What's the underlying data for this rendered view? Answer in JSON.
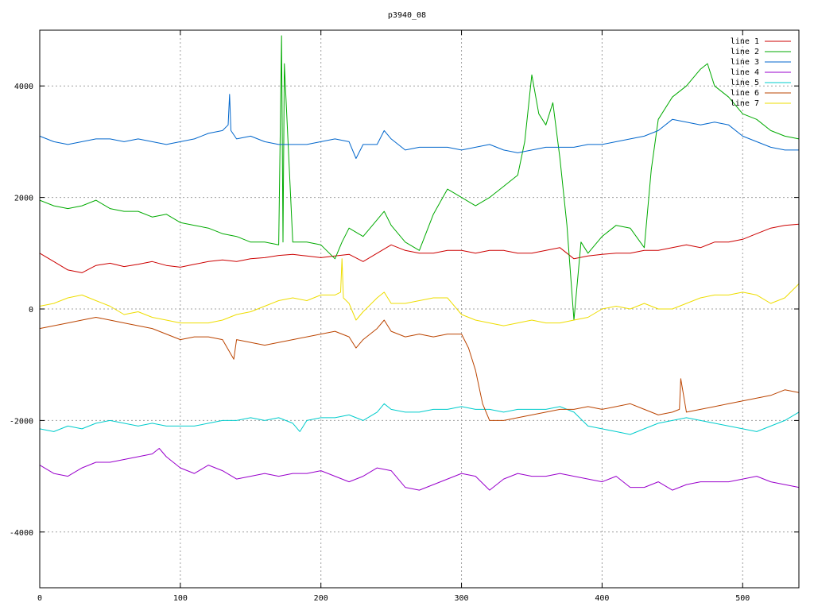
{
  "chart_data": {
    "type": "line",
    "title": "p3940_08",
    "xlabel": "",
    "ylabel": "",
    "xlim": [
      0,
      540
    ],
    "ylim": [
      -5000,
      5000
    ],
    "xticks": [
      0,
      100,
      200,
      300,
      400,
      500
    ],
    "xtick_labels": [
      "0",
      "100",
      "200",
      "300",
      "400",
      "500"
    ],
    "yticks": [
      -4000,
      -2000,
      0,
      2000,
      4000
    ],
    "ytick_labels": [
      "-4000",
      "-2000",
      "0",
      "2000",
      "4000"
    ],
    "grid": true,
    "legend_position": "top-right",
    "series": [
      {
        "name": "line 1",
        "color": "#cc0000",
        "x": [
          0,
          10,
          20,
          30,
          40,
          50,
          60,
          70,
          80,
          90,
          100,
          110,
          120,
          130,
          140,
          150,
          160,
          170,
          180,
          190,
          200,
          210,
          220,
          230,
          240,
          250,
          260,
          270,
          280,
          290,
          300,
          310,
          320,
          330,
          340,
          350,
          360,
          370,
          380,
          390,
          400,
          410,
          420,
          430,
          440,
          450,
          460,
          470,
          480,
          490,
          500,
          510,
          520,
          530,
          540
        ],
        "values": [
          1000,
          850,
          700,
          650,
          780,
          820,
          760,
          800,
          850,
          780,
          750,
          800,
          850,
          880,
          850,
          900,
          920,
          960,
          980,
          950,
          920,
          950,
          980,
          850,
          1000,
          1150,
          1050,
          1000,
          1000,
          1050,
          1050,
          1000,
          1050,
          1050,
          1000,
          1000,
          1050,
          1100,
          900,
          950,
          980,
          1000,
          1000,
          1050,
          1050,
          1100,
          1150,
          1100,
          1200,
          1200,
          1250,
          1350,
          1450,
          1500,
          1520
        ]
      },
      {
        "name": "line 2",
        "color": "#00aa00",
        "x": [
          0,
          10,
          20,
          30,
          40,
          50,
          60,
          70,
          80,
          90,
          100,
          110,
          120,
          130,
          140,
          150,
          160,
          170,
          172,
          173,
          174,
          180,
          190,
          200,
          210,
          215,
          220,
          230,
          240,
          245,
          250,
          260,
          270,
          280,
          290,
          300,
          310,
          320,
          330,
          340,
          345,
          350,
          355,
          360,
          365,
          370,
          375,
          380,
          385,
          390,
          400,
          410,
          420,
          430,
          435,
          440,
          450,
          460,
          470,
          475,
          480,
          490,
          500,
          510,
          520,
          530,
          540
        ],
        "values": [
          1950,
          1850,
          1800,
          1850,
          1950,
          1800,
          1750,
          1750,
          1650,
          1700,
          1550,
          1500,
          1450,
          1350,
          1300,
          1200,
          1200,
          1150,
          4900,
          1200,
          4400,
          1200,
          1200,
          1150,
          900,
          1200,
          1450,
          1300,
          1600,
          1750,
          1500,
          1200,
          1050,
          1700,
          2150,
          2000,
          1850,
          2000,
          2200,
          2400,
          3000,
          4200,
          3500,
          3300,
          3700,
          2700,
          1500,
          -200,
          1200,
          1000,
          1300,
          1500,
          1450,
          1100,
          2500,
          3400,
          3800,
          4000,
          4300,
          4400,
          4000,
          3800,
          3500,
          3400,
          3200,
          3100,
          3050
        ]
      },
      {
        "name": "line 3",
        "color": "#0066cc",
        "x": [
          0,
          10,
          20,
          30,
          40,
          50,
          60,
          70,
          80,
          90,
          100,
          110,
          120,
          130,
          134,
          135,
          136,
          140,
          150,
          160,
          170,
          180,
          190,
          200,
          210,
          220,
          225,
          230,
          240,
          245,
          250,
          260,
          270,
          280,
          290,
          300,
          310,
          320,
          330,
          340,
          350,
          360,
          370,
          380,
          390,
          400,
          410,
          420,
          430,
          440,
          450,
          460,
          470,
          480,
          490,
          500,
          510,
          520,
          530,
          540
        ],
        "values": [
          3100,
          3000,
          2950,
          3000,
          3050,
          3050,
          3000,
          3050,
          3000,
          2950,
          3000,
          3050,
          3150,
          3200,
          3300,
          3850,
          3200,
          3050,
          3100,
          3000,
          2950,
          2950,
          2950,
          3000,
          3050,
          3000,
          2700,
          2950,
          2950,
          3200,
          3050,
          2850,
          2900,
          2900,
          2900,
          2850,
          2900,
          2950,
          2850,
          2800,
          2850,
          2900,
          2900,
          2900,
          2950,
          2950,
          3000,
          3050,
          3100,
          3200,
          3400,
          3350,
          3300,
          3350,
          3300,
          3100,
          3000,
          2900,
          2850,
          2850
        ]
      },
      {
        "name": "line 4",
        "color": "#9900cc",
        "x": [
          0,
          10,
          20,
          30,
          40,
          50,
          60,
          70,
          80,
          85,
          90,
          100,
          110,
          120,
          130,
          140,
          150,
          160,
          170,
          180,
          190,
          200,
          210,
          220,
          230,
          240,
          250,
          260,
          270,
          280,
          290,
          300,
          310,
          320,
          330,
          340,
          350,
          360,
          370,
          380,
          390,
          400,
          410,
          420,
          430,
          440,
          450,
          460,
          470,
          480,
          490,
          500,
          510,
          520,
          530,
          540
        ],
        "values": [
          -2800,
          -2950,
          -3000,
          -2850,
          -2750,
          -2750,
          -2700,
          -2650,
          -2600,
          -2500,
          -2650,
          -2850,
          -2950,
          -2800,
          -2900,
          -3050,
          -3000,
          -2950,
          -3000,
          -2950,
          -2950,
          -2900,
          -3000,
          -3100,
          -3000,
          -2850,
          -2900,
          -3200,
          -3250,
          -3150,
          -3050,
          -2950,
          -3000,
          -3250,
          -3050,
          -2950,
          -3000,
          -3000,
          -2950,
          -3000,
          -3050,
          -3100,
          -3000,
          -3200,
          -3200,
          -3100,
          -3250,
          -3150,
          -3100,
          -3100,
          -3100,
          -3050,
          -3000,
          -3100,
          -3150,
          -3200
        ]
      },
      {
        "name": "line 5",
        "color": "#00cccc",
        "x": [
          0,
          10,
          20,
          30,
          40,
          50,
          60,
          70,
          80,
          90,
          100,
          110,
          120,
          130,
          140,
          150,
          160,
          170,
          180,
          185,
          190,
          200,
          210,
          220,
          230,
          240,
          245,
          250,
          260,
          270,
          280,
          290,
          300,
          310,
          320,
          330,
          340,
          350,
          360,
          370,
          380,
          390,
          400,
          410,
          420,
          430,
          440,
          450,
          460,
          470,
          480,
          490,
          500,
          510,
          520,
          530,
          540
        ],
        "values": [
          -2150,
          -2200,
          -2100,
          -2150,
          -2050,
          -2000,
          -2050,
          -2100,
          -2050,
          -2100,
          -2100,
          -2100,
          -2050,
          -2000,
          -2000,
          -1950,
          -2000,
          -1950,
          -2050,
          -2200,
          -2000,
          -1950,
          -1950,
          -1900,
          -2000,
          -1850,
          -1700,
          -1800,
          -1850,
          -1850,
          -1800,
          -1800,
          -1750,
          -1800,
          -1800,
          -1850,
          -1800,
          -1800,
          -1800,
          -1750,
          -1850,
          -2100,
          -2150,
          -2200,
          -2250,
          -2150,
          -2050,
          -2000,
          -1950,
          -2000,
          -2050,
          -2100,
          -2150,
          -2200,
          -2100,
          -2000,
          -1850
        ]
      },
      {
        "name": "line 6",
        "color": "#bb4400",
        "x": [
          0,
          10,
          20,
          30,
          40,
          50,
          60,
          70,
          80,
          90,
          100,
          110,
          120,
          130,
          138,
          140,
          150,
          160,
          170,
          180,
          190,
          200,
          210,
          220,
          225,
          230,
          240,
          245,
          250,
          260,
          270,
          280,
          290,
          300,
          305,
          310,
          315,
          320,
          330,
          340,
          350,
          360,
          370,
          380,
          390,
          400,
          410,
          420,
          430,
          440,
          450,
          455,
          456,
          460,
          470,
          480,
          490,
          500,
          510,
          520,
          530,
          540
        ],
        "values": [
          -350,
          -300,
          -250,
          -200,
          -150,
          -200,
          -250,
          -300,
          -350,
          -450,
          -550,
          -500,
          -500,
          -550,
          -900,
          -550,
          -600,
          -650,
          -600,
          -550,
          -500,
          -450,
          -400,
          -500,
          -700,
          -550,
          -350,
          -200,
          -400,
          -500,
          -450,
          -500,
          -450,
          -450,
          -700,
          -1100,
          -1700,
          -2000,
          -2000,
          -1950,
          -1900,
          -1850,
          -1800,
          -1800,
          -1750,
          -1800,
          -1750,
          -1700,
          -1800,
          -1900,
          -1850,
          -1800,
          -1250,
          -1850,
          -1800,
          -1750,
          -1700,
          -1650,
          -1600,
          -1550,
          -1450,
          -1500
        ]
      },
      {
        "name": "line 7",
        "color": "#eedd00",
        "x": [
          0,
          10,
          20,
          30,
          40,
          50,
          60,
          70,
          80,
          90,
          100,
          110,
          120,
          130,
          140,
          150,
          160,
          170,
          180,
          190,
          200,
          210,
          214,
          215,
          216,
          220,
          225,
          230,
          240,
          245,
          250,
          260,
          270,
          280,
          290,
          300,
          310,
          320,
          330,
          340,
          350,
          360,
          370,
          380,
          390,
          400,
          410,
          420,
          430,
          440,
          450,
          460,
          470,
          480,
          490,
          500,
          510,
          520,
          530,
          540
        ],
        "values": [
          50,
          100,
          200,
          250,
          150,
          50,
          -100,
          -50,
          -150,
          -200,
          -250,
          -250,
          -250,
          -200,
          -100,
          -50,
          50,
          150,
          200,
          150,
          250,
          250,
          300,
          900,
          200,
          100,
          -200,
          -50,
          200,
          300,
          100,
          100,
          150,
          200,
          200,
          -100,
          -200,
          -250,
          -300,
          -250,
          -200,
          -250,
          -250,
          -200,
          -150,
          0,
          50,
          0,
          100,
          0,
          0,
          100,
          200,
          250,
          250,
          300,
          250,
          100,
          200,
          450
        ]
      }
    ]
  }
}
